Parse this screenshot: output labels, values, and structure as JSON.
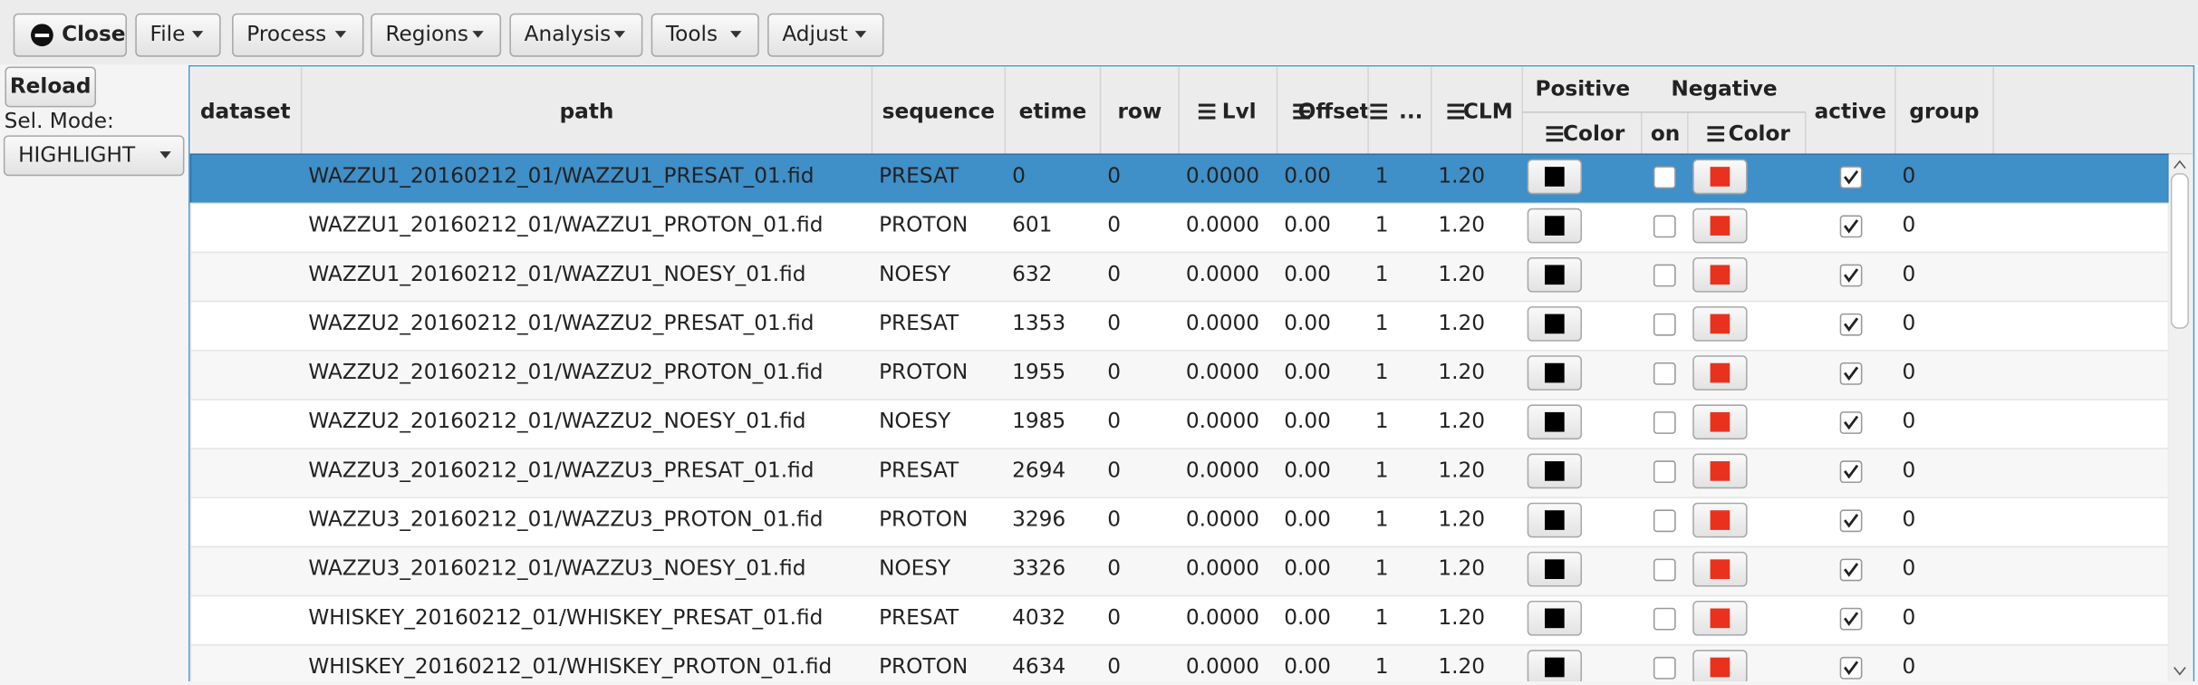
{
  "toolbar": {
    "buttons": [
      "Close",
      "File",
      "Process",
      "Regions",
      "Analysis",
      "Tools",
      "Adjust"
    ]
  },
  "side_panel": {
    "reload": "Reload",
    "sel_mode_label": "Sel. Mode:",
    "sel_mode": "HIGHLIGHT"
  },
  "table": {
    "headers": {
      "dataset": "dataset",
      "path": "path",
      "sequence": "sequence",
      "etime": "etime",
      "row": "row",
      "lvl": "Lvl",
      "offset": "Offset",
      "dim": "...",
      "clm": "CLM",
      "positive": "Positive",
      "positive_color": "Color",
      "negative": "Negative",
      "negative_on": "on",
      "negative_color": "Color",
      "active": "active",
      "group": "group"
    },
    "selected_row": 0,
    "rows": [
      {
        "path": "WAZZU1_20160212_01/WAZZU1_PRESAT_01.fid",
        "sequence": "PRESAT",
        "etime": "0",
        "row": "0",
        "lvl": "0.0000",
        "offset": "0.00",
        "dim": "1",
        "clm": "1.20",
        "on": false,
        "active": true,
        "group": "0"
      },
      {
        "path": "WAZZU1_20160212_01/WAZZU1_PROTON_01.fid",
        "sequence": "PROTON",
        "etime": "601",
        "row": "0",
        "lvl": "0.0000",
        "offset": "0.00",
        "dim": "1",
        "clm": "1.20",
        "on": false,
        "active": true,
        "group": "0"
      },
      {
        "path": "WAZZU1_20160212_01/WAZZU1_NOESY_01.fid",
        "sequence": "NOESY",
        "etime": "632",
        "row": "0",
        "lvl": "0.0000",
        "offset": "0.00",
        "dim": "1",
        "clm": "1.20",
        "on": false,
        "active": true,
        "group": "0"
      },
      {
        "path": "WAZZU2_20160212_01/WAZZU2_PRESAT_01.fid",
        "sequence": "PRESAT",
        "etime": "1353",
        "row": "0",
        "lvl": "0.0000",
        "offset": "0.00",
        "dim": "1",
        "clm": "1.20",
        "on": false,
        "active": true,
        "group": "0"
      },
      {
        "path": "WAZZU2_20160212_01/WAZZU2_PROTON_01.fid",
        "sequence": "PROTON",
        "etime": "1955",
        "row": "0",
        "lvl": "0.0000",
        "offset": "0.00",
        "dim": "1",
        "clm": "1.20",
        "on": false,
        "active": true,
        "group": "0"
      },
      {
        "path": "WAZZU2_20160212_01/WAZZU2_NOESY_01.fid",
        "sequence": "NOESY",
        "etime": "1985",
        "row": "0",
        "lvl": "0.0000",
        "offset": "0.00",
        "dim": "1",
        "clm": "1.20",
        "on": false,
        "active": true,
        "group": "0"
      },
      {
        "path": "WAZZU3_20160212_01/WAZZU3_PRESAT_01.fid",
        "sequence": "PRESAT",
        "etime": "2694",
        "row": "0",
        "lvl": "0.0000",
        "offset": "0.00",
        "dim": "1",
        "clm": "1.20",
        "on": false,
        "active": true,
        "group": "0"
      },
      {
        "path": "WAZZU3_20160212_01/WAZZU3_PROTON_01.fid",
        "sequence": "PROTON",
        "etime": "3296",
        "row": "0",
        "lvl": "0.0000",
        "offset": "0.00",
        "dim": "1",
        "clm": "1.20",
        "on": false,
        "active": true,
        "group": "0"
      },
      {
        "path": "WAZZU3_20160212_01/WAZZU3_NOESY_01.fid",
        "sequence": "NOESY",
        "etime": "3326",
        "row": "0",
        "lvl": "0.0000",
        "offset": "0.00",
        "dim": "1",
        "clm": "1.20",
        "on": false,
        "active": true,
        "group": "0"
      },
      {
        "path": "WHISKEY_20160212_01/WHISKEY_PRESAT_01.fid",
        "sequence": "PRESAT",
        "etime": "4032",
        "row": "0",
        "lvl": "0.0000",
        "offset": "0.00",
        "dim": "1",
        "clm": "1.20",
        "on": false,
        "active": true,
        "group": "0"
      },
      {
        "path": "WHISKEY_20160212_01/WHISKEY_PROTON_01.fid",
        "sequence": "PROTON",
        "etime": "4634",
        "row": "0",
        "lvl": "0.0000",
        "offset": "0.00",
        "dim": "1",
        "clm": "1.20",
        "on": false,
        "active": true,
        "group": "0"
      }
    ]
  }
}
